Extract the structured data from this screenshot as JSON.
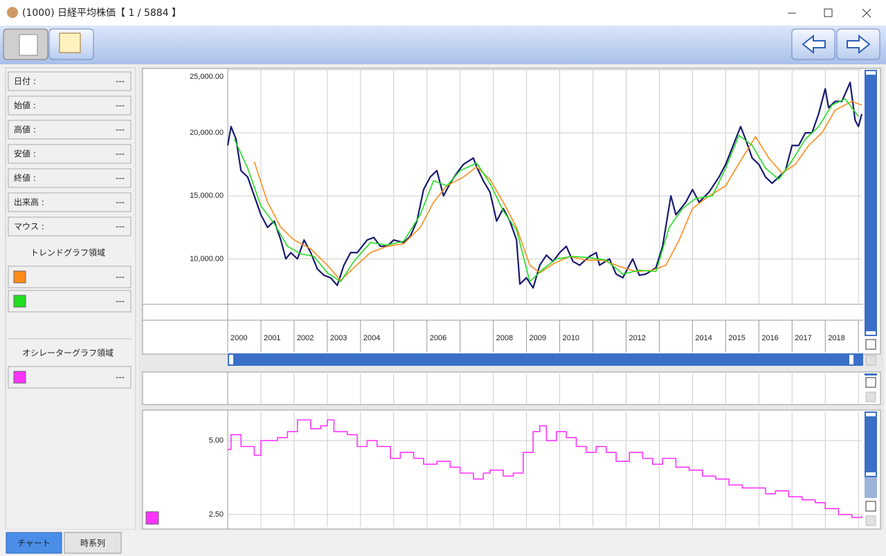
{
  "window": {
    "title": "(1000) 日経平均株価【 1 / 5884 】"
  },
  "info_panel": {
    "rows": [
      {
        "label": "日付 :",
        "value": "---"
      },
      {
        "label": "始値 :",
        "value": "---"
      },
      {
        "label": "高値 :",
        "value": "---"
      },
      {
        "label": "安値 :",
        "value": "---"
      },
      {
        "label": "終値 :",
        "value": "---"
      },
      {
        "label": "出来高 :",
        "value": "---"
      },
      {
        "label": "マウス :",
        "value": "---"
      }
    ],
    "trend_section": "トレンドグラフ領域",
    "trend_rows": [
      "---",
      "---"
    ],
    "oscillator_section": "オシレーターグラフ領域",
    "oscillator_rows": [
      "---"
    ]
  },
  "tabs": [
    "チャート",
    "時系列"
  ],
  "chart_data": [
    {
      "type": "line",
      "xlim": [
        2000,
        2019.1
      ],
      "xticks": [
        2000,
        2001,
        2002,
        2003,
        2004,
        2006,
        2008,
        2009,
        2010,
        2012,
        2014,
        2015,
        2016,
        2017,
        2018
      ],
      "xgrid": [
        2001,
        2002,
        2003,
        2004,
        2005,
        2006,
        2007,
        2008,
        2009,
        2010,
        2011,
        2012,
        2013,
        2014,
        2015,
        2016,
        2017,
        2018,
        2019
      ],
      "ylim": [
        6400,
        25000
      ],
      "yticks": [
        {
          "value": 10000,
          "label": "10,000.00"
        },
        {
          "value": 15000,
          "label": "15,000.00"
        },
        {
          "value": 20000,
          "label": "20,000.00"
        },
        {
          "value": 25000,
          "label": "25,000.00"
        }
      ],
      "grid": true,
      "series": [
        {
          "color": "#191970",
          "x": [
            2000.0,
            2000.1,
            2000.25,
            2000.4,
            2000.6,
            2000.8,
            2001.0,
            2001.2,
            2001.4,
            2001.6,
            2001.75,
            2001.9,
            2002.1,
            2002.3,
            2002.5,
            2002.7,
            2002.9,
            2003.1,
            2003.3,
            2003.5,
            2003.7,
            2003.9,
            2004.2,
            2004.4,
            2004.6,
            2004.8,
            2005.0,
            2005.3,
            2005.5,
            2005.7,
            2005.9,
            2006.1,
            2006.3,
            2006.5,
            2006.7,
            2006.9,
            2007.1,
            2007.4,
            2007.5,
            2007.7,
            2007.9,
            2008.1,
            2008.3,
            2008.5,
            2008.7,
            2008.8,
            2009.0,
            2009.2,
            2009.4,
            2009.6,
            2009.8,
            2010.0,
            2010.2,
            2010.4,
            2010.6,
            2010.9,
            2011.1,
            2011.2,
            2011.5,
            2011.7,
            2011.9,
            2012.2,
            2012.4,
            2012.6,
            2012.9,
            2013.1,
            2013.35,
            2013.5,
            2013.8,
            2014.0,
            2014.2,
            2014.5,
            2014.8,
            2015.0,
            2015.3,
            2015.45,
            2015.6,
            2015.8,
            2016.0,
            2016.2,
            2016.4,
            2016.6,
            2016.8,
            2017.0,
            2017.2,
            2017.4,
            2017.6,
            2017.8,
            2018.0,
            2018.1,
            2018.3,
            2018.5,
            2018.75,
            2018.9,
            2019.0,
            2019.1
          ],
          "values": [
            19000,
            20500,
            19500,
            17000,
            16500,
            15000,
            13500,
            12500,
            13000,
            11500,
            10000,
            10500,
            10000,
            11500,
            10500,
            9200,
            8700,
            8500,
            7900,
            9500,
            10500,
            10500,
            11500,
            11700,
            11000,
            11000,
            11500,
            11300,
            11800,
            13000,
            15500,
            16500,
            17000,
            15000,
            16000,
            16800,
            17500,
            18000,
            17300,
            16200,
            15300,
            13000,
            14000,
            13000,
            11500,
            8000,
            8500,
            7700,
            9500,
            10300,
            9800,
            10500,
            11000,
            9800,
            9500,
            10200,
            10500,
            9500,
            10000,
            8800,
            8500,
            10000,
            8700,
            8800,
            9300,
            11000,
            15000,
            13500,
            14500,
            15500,
            14500,
            15300,
            16500,
            17500,
            19500,
            20500,
            19500,
            18000,
            17500,
            16500,
            16000,
            16500,
            17000,
            19000,
            19000,
            20000,
            20000,
            21500,
            23500,
            22000,
            22500,
            22500,
            24000,
            21000,
            20500,
            21500
          ]
        },
        {
          "color": "#ff8c1a",
          "x": [
            2000.8,
            2001.2,
            2001.6,
            2002.0,
            2002.5,
            2003.0,
            2003.4,
            2003.8,
            2004.3,
            2004.8,
            2005.3,
            2005.8,
            2006.2,
            2006.6,
            2007.1,
            2007.5,
            2007.9,
            2008.3,
            2008.7,
            2009.1,
            2009.4,
            2009.8,
            2010.3,
            2010.8,
            2011.3,
            2011.8,
            2012.3,
            2012.8,
            2013.2,
            2013.6,
            2014.0,
            2014.5,
            2015.0,
            2015.5,
            2015.9,
            2016.3,
            2016.7,
            2017.1,
            2017.5,
            2017.9,
            2018.3,
            2018.8,
            2019.1
          ],
          "values": [
            17700,
            14500,
            12500,
            11500,
            10800,
            9500,
            8300,
            9300,
            10500,
            11000,
            11200,
            12500,
            14500,
            15800,
            16500,
            17300,
            16300,
            14500,
            12500,
            9500,
            8900,
            9600,
            10200,
            9900,
            9900,
            9400,
            9000,
            9100,
            9500,
            11500,
            14000,
            15000,
            15800,
            18000,
            19700,
            18000,
            16800,
            17500,
            19000,
            20000,
            21800,
            22500,
            22200
          ]
        },
        {
          "color": "#22dd22",
          "x": [
            2000.2,
            2000.6,
            2001.0,
            2001.4,
            2001.8,
            2002.2,
            2002.6,
            2003.0,
            2003.4,
            2003.8,
            2004.3,
            2004.8,
            2005.3,
            2005.8,
            2006.2,
            2006.6,
            2007.0,
            2007.5,
            2007.9,
            2008.3,
            2008.7,
            2009.1,
            2009.5,
            2009.9,
            2010.4,
            2010.9,
            2011.4,
            2011.9,
            2012.4,
            2012.9,
            2013.3,
            2013.7,
            2014.1,
            2014.6,
            2015.0,
            2015.4,
            2015.8,
            2016.2,
            2016.6,
            2017.0,
            2017.4,
            2017.8,
            2018.2,
            2018.6,
            2019.0
          ],
          "values": [
            19500,
            17200,
            14200,
            12800,
            11000,
            10400,
            10200,
            8900,
            8200,
            9800,
            11300,
            11100,
            11400,
            13500,
            16200,
            15800,
            17000,
            17600,
            16000,
            13800,
            12300,
            8200,
            9200,
            10000,
            10200,
            10100,
            9900,
            8800,
            9100,
            9000,
            12500,
            14000,
            14800,
            15000,
            17200,
            19800,
            19000,
            17200,
            16300,
            17800,
            19500,
            20500,
            22200,
            22700,
            21300
          ]
        }
      ]
    },
    {
      "type": "line",
      "step": true,
      "xlim": [
        2000,
        2019.1
      ],
      "xgrid": [
        2001,
        2002,
        2003,
        2004,
        2005,
        2006,
        2007,
        2008,
        2009,
        2010,
        2011,
        2012,
        2013,
        2014,
        2015,
        2016,
        2017,
        2018,
        2019
      ],
      "ylim": [
        2.08,
        5.96
      ],
      "yticks": [
        {
          "value": 2.5,
          "label": "2.50"
        },
        {
          "value": 5,
          "label": "5.00"
        }
      ],
      "grid": true,
      "series": [
        {
          "color": "#ff33ff",
          "x": [
            2000.0,
            2000.1,
            2000.4,
            2000.8,
            2001.0,
            2001.5,
            2001.8,
            2002.1,
            2002.5,
            2002.8,
            2003.0,
            2003.2,
            2003.6,
            2003.9,
            2004.2,
            2004.5,
            2004.9,
            2005.2,
            2005.6,
            2005.9,
            2006.3,
            2006.7,
            2007.0,
            2007.4,
            2007.7,
            2007.9,
            2008.3,
            2008.6,
            2008.9,
            2009.2,
            2009.4,
            2009.6,
            2009.9,
            2010.2,
            2010.5,
            2010.8,
            2011.1,
            2011.4,
            2011.7,
            2012.1,
            2012.5,
            2012.8,
            2013.1,
            2013.5,
            2013.9,
            2014.3,
            2014.7,
            2015.1,
            2015.5,
            2015.9,
            2016.2,
            2016.5,
            2016.9,
            2017.3,
            2017.7,
            2018.0,
            2018.4,
            2018.8,
            2019.1
          ],
          "values": [
            4.7,
            5.2,
            4.8,
            4.5,
            5.0,
            5.1,
            5.3,
            5.7,
            5.4,
            5.5,
            5.7,
            5.3,
            5.2,
            4.8,
            5.0,
            4.8,
            4.4,
            4.6,
            4.4,
            4.2,
            4.3,
            4.1,
            3.9,
            3.7,
            3.9,
            4.0,
            3.8,
            3.9,
            4.6,
            5.3,
            5.5,
            5.0,
            5.3,
            5.1,
            4.8,
            4.6,
            4.8,
            4.6,
            4.3,
            4.6,
            4.4,
            4.2,
            4.4,
            4.1,
            4.0,
            3.8,
            3.7,
            3.5,
            3.4,
            3.4,
            3.2,
            3.3,
            3.1,
            3.0,
            2.9,
            2.7,
            2.5,
            2.4,
            2.45
          ]
        }
      ]
    }
  ]
}
